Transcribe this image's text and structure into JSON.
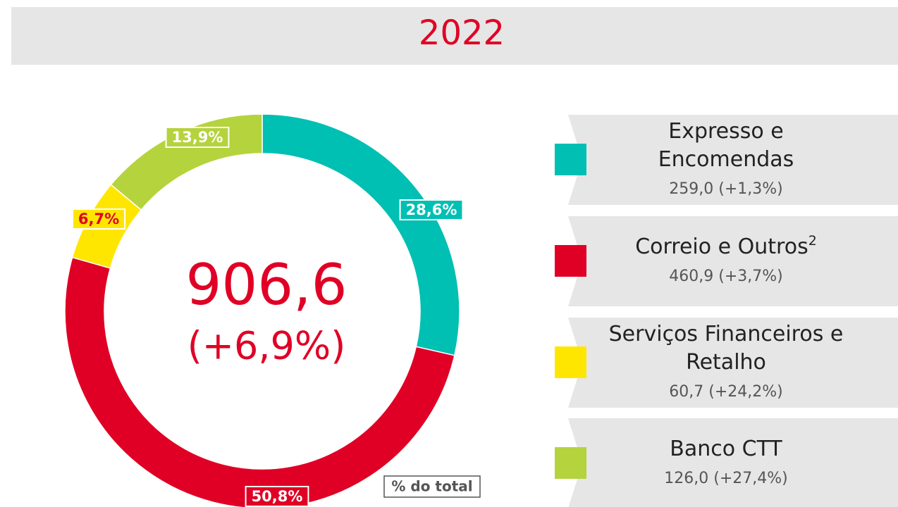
{
  "chart_data": {
    "type": "pie",
    "title": "2022",
    "center_value": "906,6",
    "center_change": "(+6,9%)",
    "note": "% do total",
    "categories": [
      "Expresso e Encomendas",
      "Correio e Outros",
      "Serviços Financeiros e Retalho",
      "Banco CTT"
    ],
    "footnotes": [
      null,
      "2",
      null,
      null
    ],
    "details": [
      "259,0 (+1,3%)",
      "460,9 (+3,7%)",
      "60,7 (+24,2%)",
      "126,0 (+27,4%)"
    ],
    "values": [
      28.6,
      50.8,
      6.7,
      13.9
    ],
    "value_labels": [
      "28,6%",
      "50,8%",
      "6,7%",
      "13,9%"
    ],
    "colors": [
      "#00bfb3",
      "#e00025",
      "#ffe600",
      "#b5d33d"
    ],
    "label_colors": [
      "#ffffff",
      "#ffffff",
      "#e00025",
      "#ffffff"
    ]
  }
}
